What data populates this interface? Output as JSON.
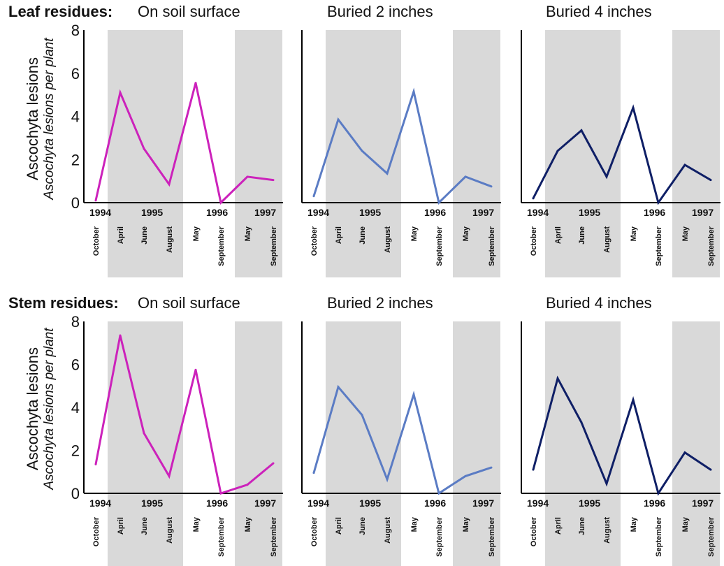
{
  "colors": {
    "shade": "#d9d9d9",
    "surface": "#cc22bb",
    "buried2": "#5b7cc4",
    "buried4": "#0f1f66",
    "axis": "#000000"
  },
  "y_axis_label_line1": "Ascochyta lesions",
  "y_axis_label_line2": "Ascochyta lesions per plant",
  "chart_data": [
    {
      "type": "line",
      "row": "Leaf residues:",
      "title": "On soil surface",
      "ylim": [
        0,
        8
      ],
      "yticks": [
        "0",
        "2",
        "4",
        "6",
        "8"
      ],
      "years": [
        "1994",
        "1995",
        "1996",
        "1997"
      ],
      "x": [
        "October",
        "April",
        "June",
        "August",
        "May",
        "September",
        "May",
        "September"
      ],
      "values": [
        0.1,
        5.1,
        2.5,
        0.85,
        5.55,
        0.0,
        1.2,
        1.05
      ],
      "color_key": "surface",
      "shading": "grey bands: April–August 1995 and May–September 1997"
    },
    {
      "type": "line",
      "row": "",
      "title": "Buried 2 inches",
      "ylim": [
        0,
        8
      ],
      "yticks": [],
      "years": [
        "1994",
        "1995",
        "1996",
        "1997"
      ],
      "x": [
        "October",
        "April",
        "June",
        "August",
        "May",
        "September",
        "May",
        "September"
      ],
      "values": [
        0.3,
        3.85,
        2.4,
        1.35,
        5.15,
        0.0,
        1.2,
        0.75
      ],
      "color_key": "buried2",
      "shading": "grey bands: April–August 1995 and May–September 1997"
    },
    {
      "type": "line",
      "row": "",
      "title": "Buried 4 inches",
      "ylim": [
        0,
        8
      ],
      "yticks": [],
      "years": [
        "1994",
        "1995",
        "1996",
        "1997"
      ],
      "x": [
        "October",
        "April",
        "June",
        "August",
        "May",
        "September",
        "May",
        "September"
      ],
      "values": [
        0.2,
        2.4,
        3.35,
        1.2,
        4.4,
        0.0,
        1.75,
        1.05
      ],
      "color_key": "buried4",
      "shading": "grey bands: April–August 1995 and May–September 1997"
    },
    {
      "type": "line",
      "row": "Stem residues:",
      "title": "On soil surface",
      "ylim": [
        0,
        8
      ],
      "yticks": [
        "0",
        "2",
        "4",
        "6",
        "8"
      ],
      "years": [
        "1994",
        "1995",
        "1996",
        "1997"
      ],
      "x": [
        "October",
        "April",
        "June",
        "August",
        "May",
        "September",
        "May",
        "September"
      ],
      "values": [
        1.35,
        7.35,
        2.8,
        0.8,
        5.75,
        0.0,
        0.4,
        1.4
      ],
      "color_key": "surface",
      "shading": "grey bands: April–August 1995 and May–September 1997"
    },
    {
      "type": "line",
      "row": "",
      "title": "Buried 2 inches",
      "ylim": [
        0,
        8
      ],
      "yticks": [],
      "years": [
        "1994",
        "1995",
        "1996",
        "1997"
      ],
      "x": [
        "October",
        "April",
        "June",
        "August",
        "May",
        "September",
        "May",
        "September"
      ],
      "values": [
        0.95,
        4.95,
        3.65,
        0.65,
        4.6,
        0.0,
        0.8,
        1.2
      ],
      "color_key": "buried2",
      "shading": "grey bands: April–August 1995 and May–September 1997"
    },
    {
      "type": "line",
      "row": "",
      "title": "Buried 4 inches",
      "ylim": [
        0,
        8
      ],
      "yticks": [],
      "years": [
        "1994",
        "1995",
        "1996",
        "1997"
      ],
      "x": [
        "October",
        "April",
        "June",
        "August",
        "May",
        "September",
        "May",
        "September"
      ],
      "values": [
        1.1,
        5.35,
        3.3,
        0.45,
        4.35,
        0.0,
        1.9,
        1.1
      ],
      "color_key": "buried4",
      "shading": "grey bands: April–August 1995 and May–September 1997"
    }
  ]
}
